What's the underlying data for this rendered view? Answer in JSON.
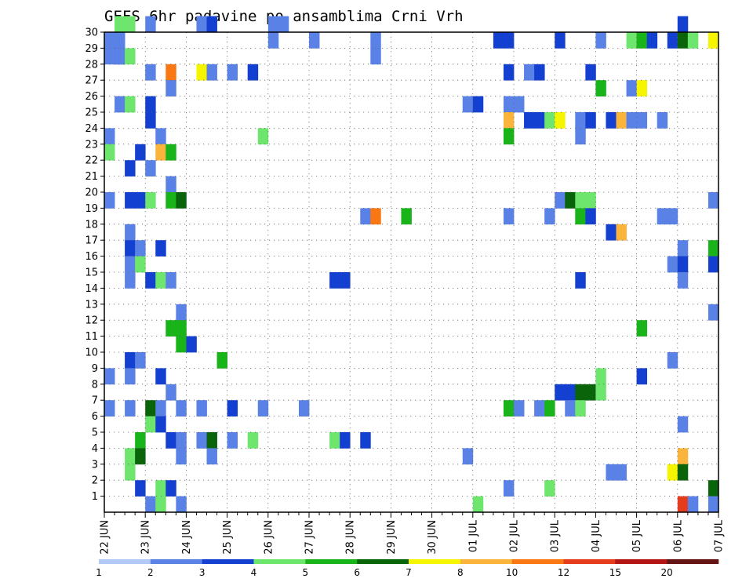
{
  "chart_data": {
    "type": "heatmap",
    "title": "GEFS 6hr padavine po ansamblima Crni Vrh",
    "xlabel": "",
    "ylabel": "",
    "x_ticks": [
      "22 JUN",
      "23 JUN",
      "24 JUN",
      "25 JUN",
      "26 JUN",
      "27 JUN",
      "28 JUN",
      "29 JUN",
      "30 JUN",
      "01 JUL",
      "02 JUL",
      "03 JUL",
      "04 JUL",
      "05 JUL",
      "06 JUL",
      "07 JUL"
    ],
    "y_ticks": [
      "1",
      "2",
      "3",
      "4",
      "5",
      "6",
      "7",
      "8",
      "9",
      "10",
      "11",
      "12",
      "13",
      "14",
      "15",
      "16",
      "17",
      "18",
      "19",
      "20",
      "21",
      "22",
      "23",
      "24",
      "25",
      "26",
      "27",
      "28",
      "29",
      "30"
    ],
    "xlim": [
      0,
      60
    ],
    "ylim": [
      0,
      30
    ],
    "grid": true,
    "colorbar": {
      "levels": [
        "1",
        "2",
        "3",
        "4",
        "5",
        "6",
        "7",
        "8",
        "10",
        "12",
        "15",
        "20"
      ],
      "colors": [
        "#b4c8f5",
        "#5a82e6",
        "#1440d2",
        "#6ee66e",
        "#19b419",
        "#0a640a",
        "#f5f500",
        "#fab43c",
        "#fa7814",
        "#e63c1e",
        "#b41414",
        "#641414"
      ]
    },
    "cells": [
      [
        1,
        30,
        3
      ],
      [
        2,
        30,
        3
      ],
      [
        4,
        30,
        1
      ],
      [
        9,
        30,
        1
      ],
      [
        10,
        30,
        2
      ],
      [
        16,
        30,
        1
      ],
      [
        17,
        30,
        1
      ],
      [
        56,
        30,
        2
      ],
      [
        0,
        29,
        1
      ],
      [
        1,
        29,
        1
      ],
      [
        16,
        29,
        1
      ],
      [
        20,
        29,
        1
      ],
      [
        0,
        28,
        1
      ],
      [
        1,
        28,
        2
      ],
      [
        26,
        29,
        1
      ],
      [
        38,
        29,
        2
      ],
      [
        39,
        29,
        2
      ],
      [
        44,
        29,
        2
      ],
      [
        48,
        29,
        1
      ],
      [
        51,
        29,
        3
      ],
      [
        52,
        29,
        4
      ],
      [
        53,
        29,
        2
      ],
      [
        55,
        29,
        2
      ],
      [
        56,
        29,
        5
      ],
      [
        57,
        29,
        3
      ],
      [
        59,
        29,
        6
      ],
      [
        1,
        28,
        1
      ],
      [
        2,
        28,
        3
      ],
      [
        26,
        28,
        1
      ],
      [
        4,
        27,
        1
      ],
      [
        6,
        27,
        8
      ],
      [
        9,
        27,
        6
      ],
      [
        10,
        27,
        1
      ],
      [
        12,
        27,
        1
      ],
      [
        14,
        27,
        2
      ],
      [
        39,
        27,
        2
      ],
      [
        41,
        27,
        1
      ],
      [
        42,
        27,
        2
      ],
      [
        47,
        27,
        2
      ],
      [
        6,
        26,
        1
      ],
      [
        48,
        26,
        4
      ],
      [
        51,
        26,
        1
      ],
      [
        52,
        26,
        6
      ],
      [
        1,
        25,
        1
      ],
      [
        2,
        25,
        3
      ],
      [
        4,
        25,
        2
      ],
      [
        35,
        25,
        1
      ],
      [
        36,
        25,
        2
      ],
      [
        39,
        25,
        1
      ],
      [
        40,
        25,
        1
      ],
      [
        4,
        24,
        2
      ],
      [
        39,
        24,
        7
      ],
      [
        41,
        24,
        2
      ],
      [
        42,
        24,
        2
      ],
      [
        43,
        24,
        3
      ],
      [
        44,
        24,
        6
      ],
      [
        46,
        24,
        1
      ],
      [
        47,
        24,
        2
      ],
      [
        49,
        24,
        2
      ],
      [
        50,
        24,
        7
      ],
      [
        51,
        24,
        1
      ],
      [
        52,
        24,
        1
      ],
      [
        54,
        24,
        1
      ],
      [
        0,
        23,
        1
      ],
      [
        5,
        23,
        1
      ],
      [
        15,
        23,
        3
      ],
      [
        39,
        23,
        4
      ],
      [
        46,
        23,
        1
      ],
      [
        0,
        22,
        3
      ],
      [
        3,
        22,
        2
      ],
      [
        5,
        22,
        7
      ],
      [
        6,
        22,
        4
      ],
      [
        2,
        21,
        2
      ],
      [
        4,
        21,
        1
      ],
      [
        6,
        20,
        1
      ],
      [
        0,
        19,
        1
      ],
      [
        2,
        19,
        2
      ],
      [
        3,
        19,
        2
      ],
      [
        4,
        19,
        3
      ],
      [
        6,
        19,
        4
      ],
      [
        7,
        19,
        5
      ],
      [
        44,
        19,
        1
      ],
      [
        45,
        19,
        5
      ],
      [
        46,
        19,
        3
      ],
      [
        47,
        19,
        3
      ],
      [
        59,
        19,
        1
      ],
      [
        25,
        18,
        1
      ],
      [
        26,
        18,
        8
      ],
      [
        29,
        18,
        4
      ],
      [
        39,
        18,
        1
      ],
      [
        43,
        18,
        1
      ],
      [
        46,
        18,
        4
      ],
      [
        47,
        18,
        2
      ],
      [
        54,
        18,
        1
      ],
      [
        55,
        18,
        1
      ],
      [
        2,
        17,
        1
      ],
      [
        49,
        17,
        2
      ],
      [
        50,
        17,
        7
      ],
      [
        2,
        16,
        2
      ],
      [
        3,
        16,
        1
      ],
      [
        5,
        16,
        2
      ],
      [
        56,
        16,
        1
      ],
      [
        59,
        16,
        4
      ],
      [
        2,
        15,
        1
      ],
      [
        3,
        15,
        3
      ],
      [
        55,
        15,
        1
      ],
      [
        56,
        15,
        2
      ],
      [
        59,
        15,
        2
      ],
      [
        2,
        14,
        1
      ],
      [
        4,
        14,
        2
      ],
      [
        5,
        14,
        3
      ],
      [
        6,
        14,
        1
      ],
      [
        22,
        14,
        2
      ],
      [
        23,
        14,
        2
      ],
      [
        46,
        14,
        2
      ],
      [
        56,
        14,
        1
      ],
      [
        7,
        12,
        1
      ],
      [
        59,
        12,
        1
      ],
      [
        6,
        11,
        4
      ],
      [
        7,
        11,
        4
      ],
      [
        52,
        11,
        4
      ],
      [
        7,
        10,
        4
      ],
      [
        8,
        10,
        2
      ],
      [
        2,
        9,
        2
      ],
      [
        3,
        9,
        1
      ],
      [
        11,
        9,
        4
      ],
      [
        55,
        9,
        1
      ],
      [
        0,
        8,
        1
      ],
      [
        2,
        8,
        1
      ],
      [
        5,
        8,
        2
      ],
      [
        48,
        8,
        3
      ],
      [
        52,
        8,
        2
      ],
      [
        6,
        7,
        1
      ],
      [
        44,
        7,
        2
      ],
      [
        45,
        7,
        2
      ],
      [
        46,
        7,
        5
      ],
      [
        47,
        7,
        5
      ],
      [
        48,
        7,
        3
      ],
      [
        0,
        6,
        1
      ],
      [
        2,
        6,
        1
      ],
      [
        4,
        6,
        5
      ],
      [
        5,
        6,
        1
      ],
      [
        7,
        6,
        1
      ],
      [
        9,
        6,
        1
      ],
      [
        12,
        6,
        2
      ],
      [
        15,
        6,
        1
      ],
      [
        19,
        6,
        1
      ],
      [
        39,
        6,
        4
      ],
      [
        40,
        6,
        1
      ],
      [
        42,
        6,
        1
      ],
      [
        43,
        6,
        4
      ],
      [
        45,
        6,
        1
      ],
      [
        46,
        6,
        3
      ],
      [
        4,
        5,
        3
      ],
      [
        5,
        5,
        2
      ],
      [
        56,
        5,
        1
      ],
      [
        3,
        4,
        4
      ],
      [
        6,
        4,
        2
      ],
      [
        7,
        4,
        1
      ],
      [
        9,
        4,
        1
      ],
      [
        10,
        4,
        5
      ],
      [
        12,
        4,
        1
      ],
      [
        14,
        4,
        3
      ],
      [
        22,
        4,
        3
      ],
      [
        23,
        4,
        2
      ],
      [
        25,
        4,
        2
      ],
      [
        2,
        3,
        3
      ],
      [
        3,
        3,
        5
      ],
      [
        7,
        3,
        1
      ],
      [
        10,
        3,
        1
      ],
      [
        35,
        3,
        1
      ],
      [
        56,
        3,
        7
      ],
      [
        2,
        2,
        3
      ],
      [
        49,
        2,
        1
      ],
      [
        50,
        2,
        1
      ],
      [
        55,
        2,
        6
      ],
      [
        56,
        2,
        5
      ],
      [
        3,
        1,
        2
      ],
      [
        5,
        1,
        3
      ],
      [
        6,
        1,
        2
      ],
      [
        39,
        1,
        1
      ],
      [
        43,
        1,
        3
      ],
      [
        59,
        1,
        5
      ],
      [
        4,
        0,
        1
      ],
      [
        5,
        0,
        3
      ],
      [
        7,
        0,
        1
      ],
      [
        36,
        0,
        3
      ],
      [
        56,
        0,
        9
      ],
      [
        57,
        0,
        1
      ],
      [
        59,
        0,
        1
      ]
    ]
  }
}
